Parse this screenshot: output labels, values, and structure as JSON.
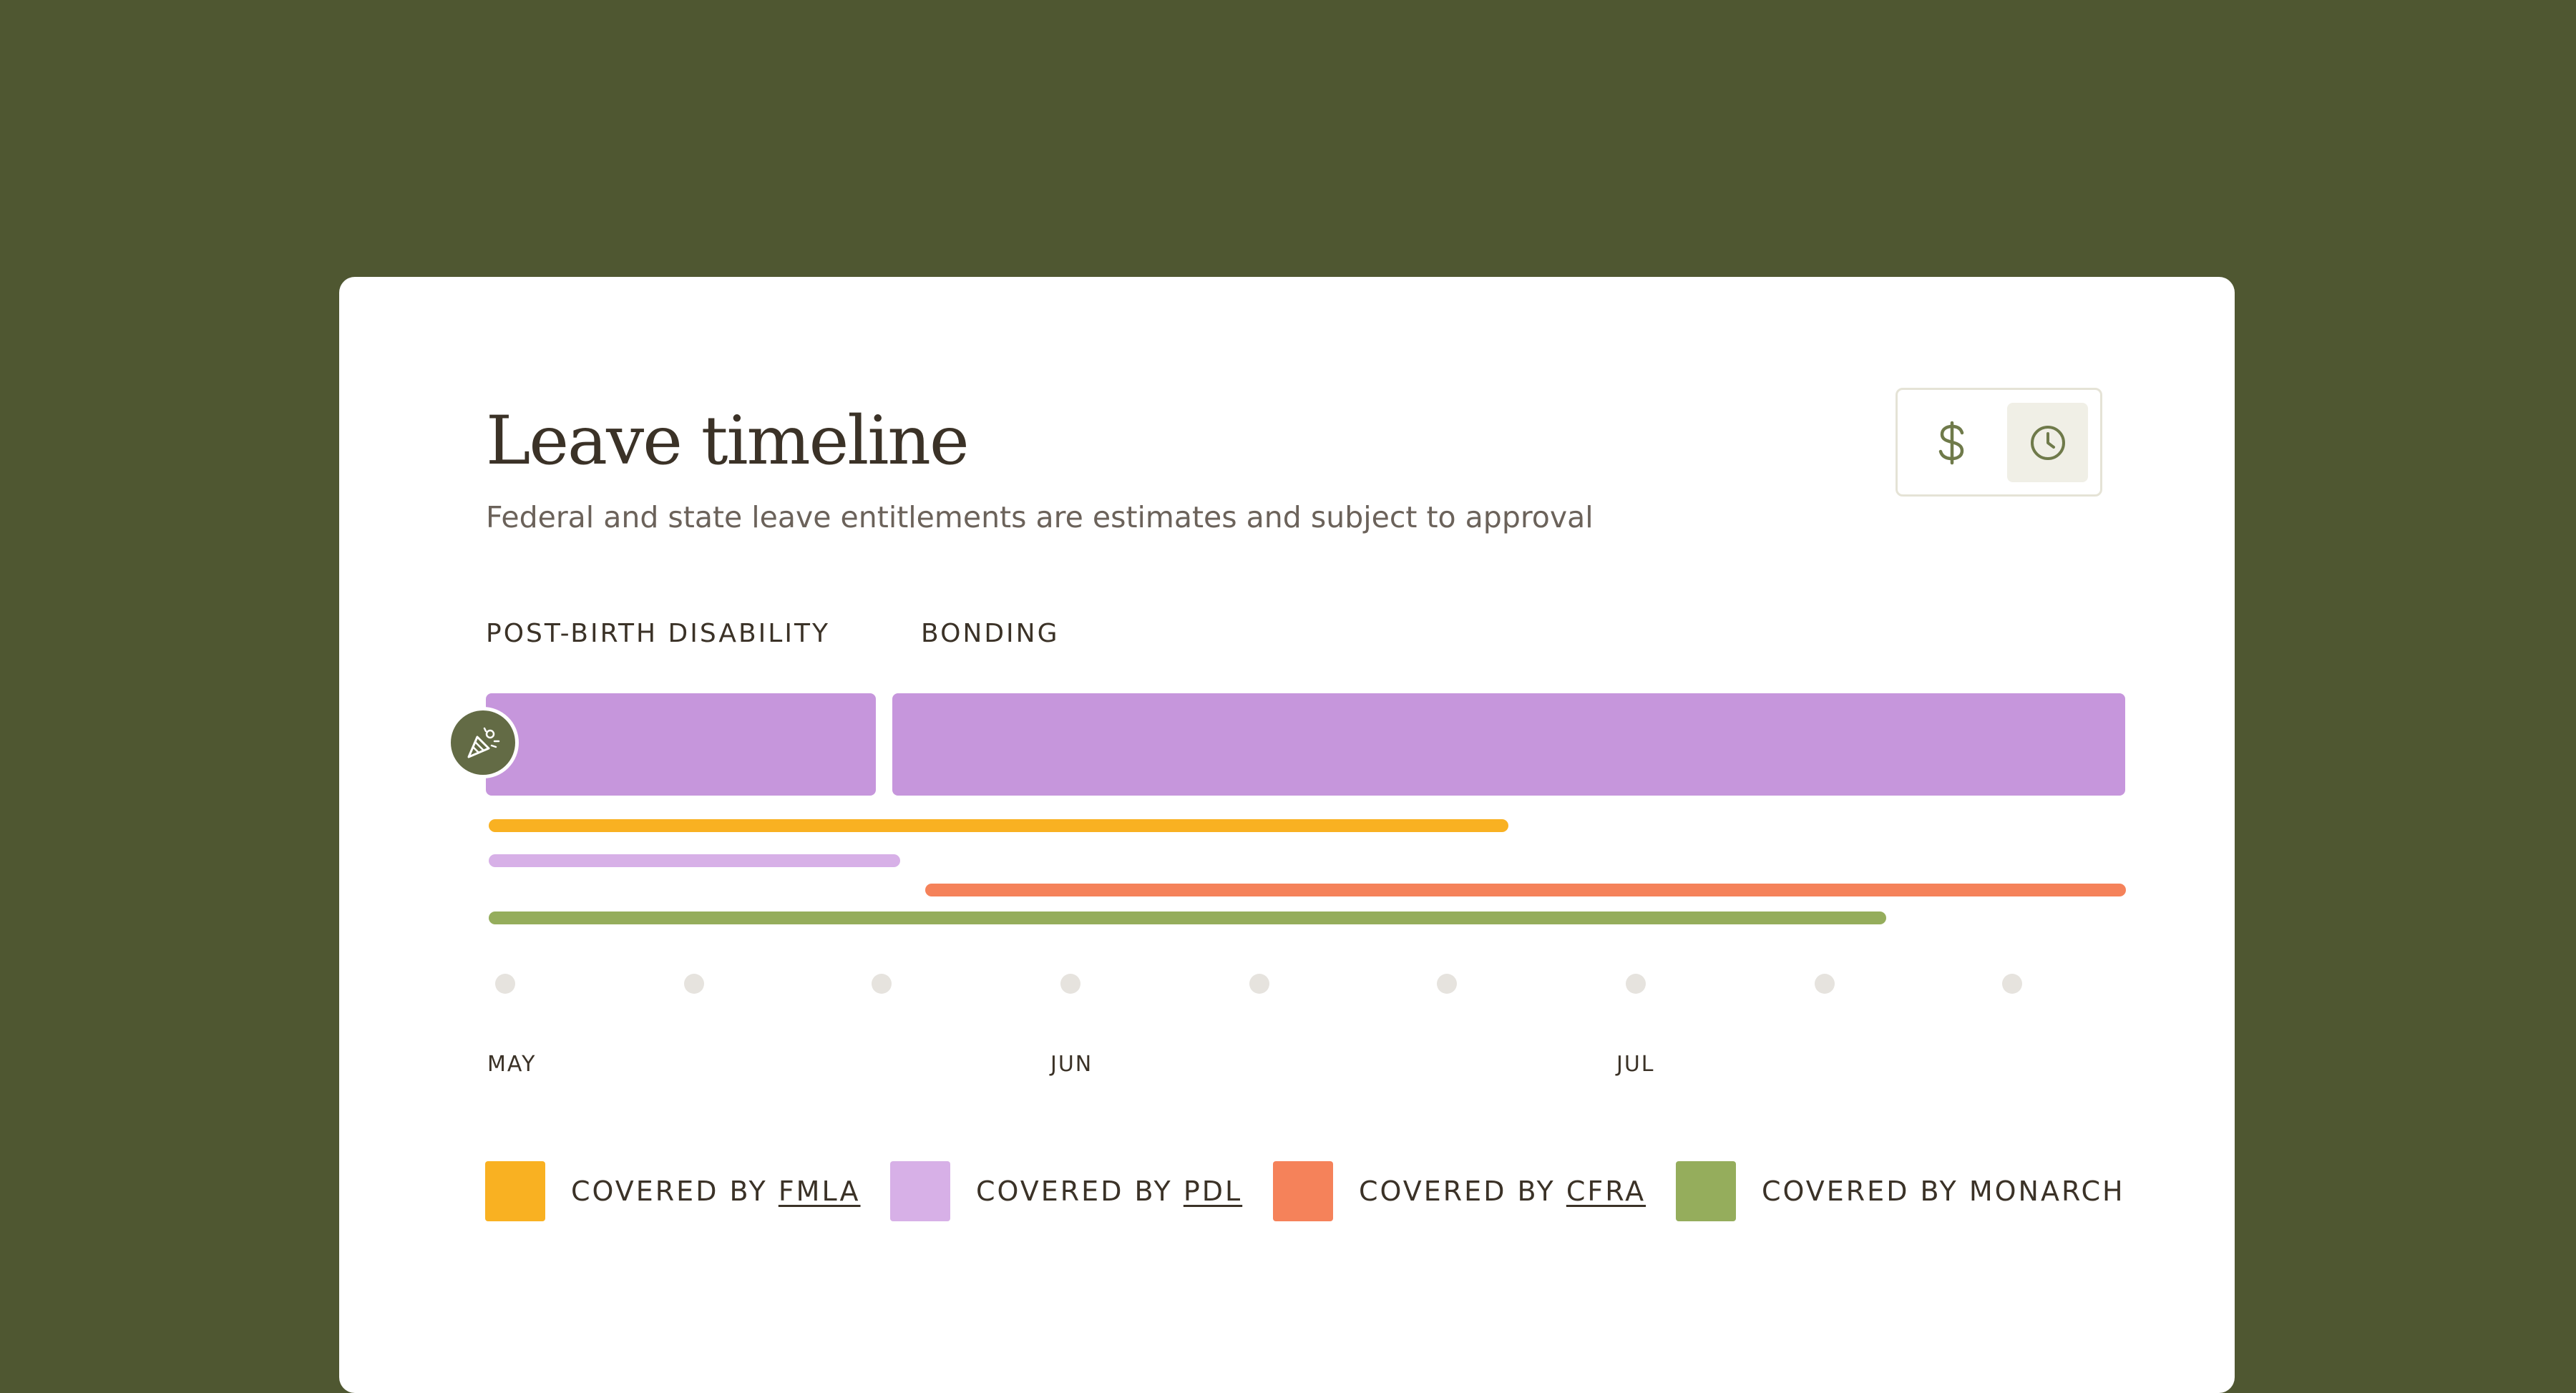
{
  "header": {
    "title": "Leave timeline",
    "subtitle": "Federal and state leave entitlements are estimates and subject to approval"
  },
  "view_toggle": {
    "options": [
      {
        "icon": "dollar-icon",
        "selected": false
      },
      {
        "icon": "clock-icon",
        "selected": true
      }
    ]
  },
  "phases": [
    {
      "label": "POST-BIRTH DISABILITY"
    },
    {
      "label": "BONDING"
    }
  ],
  "milestone": {
    "icon": "party-popper-icon"
  },
  "months": [
    "MAY",
    "JUN",
    "JUL"
  ],
  "legend": [
    {
      "prefix": "COVERED BY ",
      "name": "FMLA",
      "linked": true,
      "color": "#f9b122"
    },
    {
      "prefix": "COVERED BY ",
      "name": "PDL",
      "linked": true,
      "color": "#d7b0e7"
    },
    {
      "prefix": "COVERED BY ",
      "name": "CFRA",
      "linked": true,
      "color": "#f5825a"
    },
    {
      "prefix": "COVERED BY ",
      "name": "MONARCH",
      "linked": false,
      "color": "#95ad5c"
    }
  ],
  "colors": {
    "background": "#4f5731",
    "phase_bar": "#c696dc",
    "milestone": "#636b45",
    "accent": "#6f7a4a"
  }
}
